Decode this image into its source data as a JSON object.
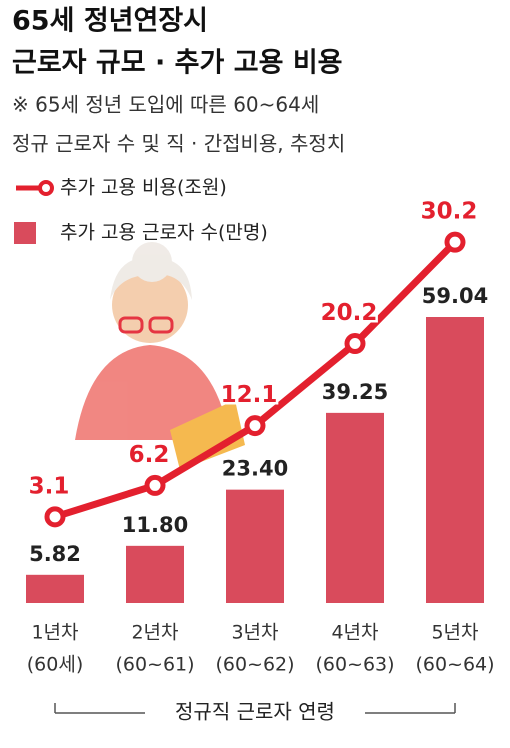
{
  "chart_data": {
    "type": "bar_line",
    "title": [
      "65세 정년연장시",
      "근로자 규모 · 추가 고용 비용"
    ],
    "subtitle": [
      "※ 65세 정년 도입에 따른 60~64세",
      "정규 근로자 수 및 직 · 간접비용, 추정치"
    ],
    "categories": [
      "1년차",
      "2년차",
      "3년차",
      "4년차",
      "5년차"
    ],
    "subcategories": [
      "(60세)",
      "(60~61)",
      "(60~62)",
      "(60~63)",
      "(60~64)"
    ],
    "x_label": "정규직 근로자 연령",
    "series": [
      {
        "name": "추가 고용 근로자 수(만명)",
        "type": "bar",
        "color": "#d94b5c",
        "values": [
          5.82,
          11.8,
          23.4,
          39.25,
          59.04
        ],
        "value_labels": [
          "5.82",
          "11.80",
          "23.40",
          "39.25",
          "59.04"
        ]
      },
      {
        "name": "추가 고용 비용(조원)",
        "type": "line",
        "color": "#e3202e",
        "axis": "y2",
        "values": [
          3.1,
          6.2,
          12.1,
          20.2,
          30.2
        ]
      }
    ],
    "ylim": [
      0,
      77
    ],
    "y2lim": [
      -5.4,
      31.4
    ]
  }
}
